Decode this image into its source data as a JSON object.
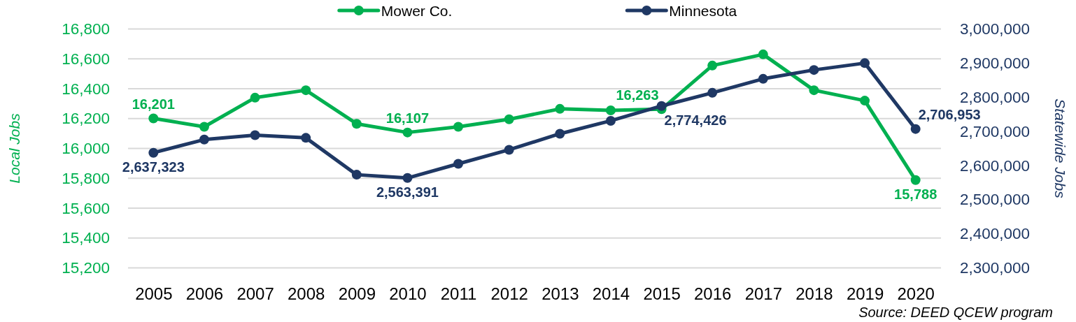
{
  "chart_data": {
    "type": "line",
    "categories": [
      "2005",
      "2006",
      "2007",
      "2008",
      "2009",
      "2010",
      "2011",
      "2012",
      "2013",
      "2014",
      "2015",
      "2016",
      "2017",
      "2018",
      "2019",
      "2020"
    ],
    "series": [
      {
        "name": "Mower Co.",
        "color": "#00b050",
        "values": [
          16201,
          16145,
          16340,
          16390,
          16165,
          16107,
          16145,
          16195,
          16265,
          16255,
          16263,
          16555,
          16630,
          16390,
          16320,
          15788
        ],
        "value_labels": [
          "16,201",
          null,
          null,
          null,
          null,
          "16,107",
          null,
          null,
          null,
          null,
          "16,263",
          null,
          null,
          null,
          null,
          "15,788"
        ]
      },
      {
        "name": "Minnesota",
        "color": "#1f3864",
        "axis": "y2",
        "values": [
          2637323,
          2676000,
          2689000,
          2681000,
          2573000,
          2563391,
          2605000,
          2646000,
          2693000,
          2731000,
          2774426,
          2813000,
          2854000,
          2880000,
          2900000,
          2706953
        ],
        "value_labels": [
          "2,637,323",
          null,
          null,
          null,
          null,
          "2,563,391",
          null,
          null,
          null,
          null,
          "2,774,426",
          null,
          null,
          null,
          null,
          "2,706,953"
        ]
      }
    ],
    "ylabel": "Local Jobs",
    "y2label": "Statewide Jobs",
    "ylim": [
      15200,
      16800
    ],
    "yticks": [
      {
        "value": 15200,
        "label": "15,200"
      },
      {
        "value": 15400,
        "label": "15,400"
      },
      {
        "value": 15600,
        "label": "15,600"
      },
      {
        "value": 15800,
        "label": "15,800"
      },
      {
        "value": 16000,
        "label": "16,000"
      },
      {
        "value": 16200,
        "label": "16,200"
      },
      {
        "value": 16400,
        "label": "16,400"
      },
      {
        "value": 16600,
        "label": "16,600"
      },
      {
        "value": 16800,
        "label": "16,800"
      }
    ],
    "y2lim": [
      2300000,
      3000000
    ],
    "y2ticks": [
      {
        "value": 2300000,
        "label": "2,300,000"
      },
      {
        "value": 2400000,
        "label": "2,400,000"
      },
      {
        "value": 2500000,
        "label": "2,500,000"
      },
      {
        "value": 2600000,
        "label": "2,600,000"
      },
      {
        "value": 2700000,
        "label": "2,700,000"
      },
      {
        "value": 2800000,
        "label": "2,800,000"
      },
      {
        "value": 2900000,
        "label": "2,900,000"
      },
      {
        "value": 3000000,
        "label": "3,000,000"
      }
    ],
    "grid": "y",
    "legend": "top",
    "marker": "circle",
    "annotations": [
      "Source: DEED QCEW program"
    ]
  }
}
